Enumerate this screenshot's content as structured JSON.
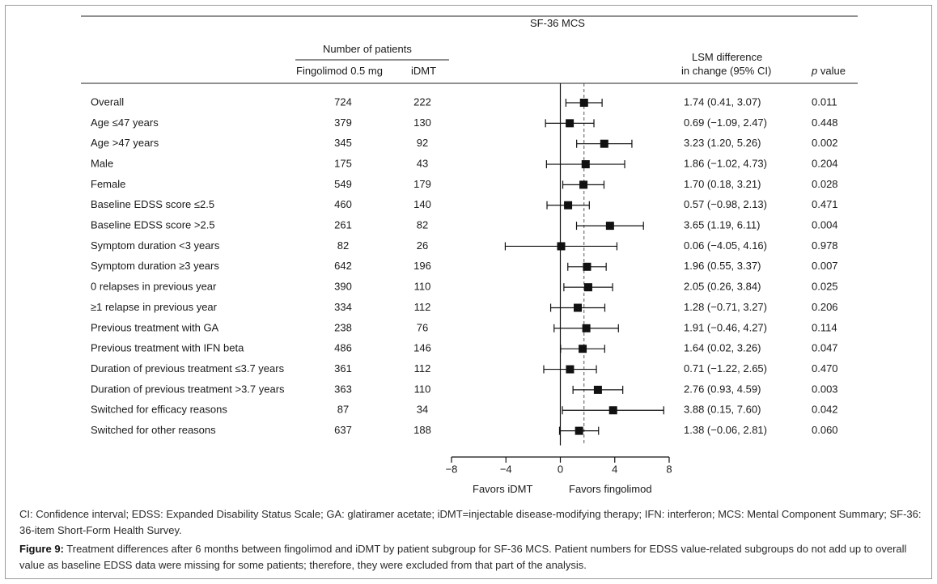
{
  "header": {
    "measure": "SF-36 MCS",
    "patients_group": "Number of patients",
    "col_fingolimod": "Fingolimod 0.5 mg",
    "col_idmt": "iDMT",
    "col_lsm_line1": "LSM difference",
    "col_lsm_line2": "in change (95% CI)",
    "col_p_italic": "p",
    "col_p_rest": " value"
  },
  "chart_data": {
    "type": "forest",
    "xlim": [
      -8,
      8
    ],
    "xticks": [
      "−8",
      "−4",
      "0",
      "4",
      "8"
    ],
    "xtick_values": [
      -8,
      -4,
      0,
      4,
      8
    ],
    "reference_line": 0,
    "overall_dashed_line": 1.74,
    "favors_left": "Favors iDMT",
    "favors_right": "Favors fingolimod",
    "rows": [
      {
        "label": "Overall",
        "n_fingo": "724",
        "n_idmt": "222",
        "est": 1.74,
        "lo": 0.41,
        "hi": 3.07,
        "ci_text": "1.74 (0.41, 3.07)",
        "p": "0.011"
      },
      {
        "label": "Age ≤47 years",
        "n_fingo": "379",
        "n_idmt": "130",
        "est": 0.69,
        "lo": -1.09,
        "hi": 2.47,
        "ci_text": "0.69 (−1.09, 2.47)",
        "p": "0.448"
      },
      {
        "label": "Age >47 years",
        "n_fingo": "345",
        "n_idmt": "92",
        "est": 3.23,
        "lo": 1.2,
        "hi": 5.26,
        "ci_text": "3.23 (1.20, 5.26)",
        "p": "0.002"
      },
      {
        "label": "Male",
        "n_fingo": "175",
        "n_idmt": "43",
        "est": 1.86,
        "lo": -1.02,
        "hi": 4.73,
        "ci_text": "1.86 (−1.02, 4.73)",
        "p": "0.204"
      },
      {
        "label": "Female",
        "n_fingo": "549",
        "n_idmt": "179",
        "est": 1.7,
        "lo": 0.18,
        "hi": 3.21,
        "ci_text": "1.70 (0.18, 3.21)",
        "p": "0.028"
      },
      {
        "label": "Baseline EDSS score ≤2.5",
        "n_fingo": "460",
        "n_idmt": "140",
        "est": 0.57,
        "lo": -0.98,
        "hi": 2.13,
        "ci_text": "0.57 (−0.98, 2.13)",
        "p": "0.471"
      },
      {
        "label": "Baseline EDSS score >2.5",
        "n_fingo": "261",
        "n_idmt": "82",
        "est": 3.65,
        "lo": 1.19,
        "hi": 6.11,
        "ci_text": "3.65 (1.19, 6.11)",
        "p": "0.004"
      },
      {
        "label": "Symptom duration <3 years",
        "n_fingo": "82",
        "n_idmt": "26",
        "est": 0.06,
        "lo": -4.05,
        "hi": 4.16,
        "ci_text": "0.06 (−4.05, 4.16)",
        "p": "0.978"
      },
      {
        "label": "Symptom duration ≥3 years",
        "n_fingo": "642",
        "n_idmt": "196",
        "est": 1.96,
        "lo": 0.55,
        "hi": 3.37,
        "ci_text": "1.96 (0.55, 3.37)",
        "p": "0.007"
      },
      {
        "label": "0 relapses in previous year",
        "n_fingo": "390",
        "n_idmt": "110",
        "est": 2.05,
        "lo": 0.26,
        "hi": 3.84,
        "ci_text": "2.05 (0.26, 3.84)",
        "p": "0.025"
      },
      {
        "label": "≥1 relapse in previous year",
        "n_fingo": "334",
        "n_idmt": "112",
        "est": 1.28,
        "lo": -0.71,
        "hi": 3.27,
        "ci_text": "1.28 (−0.71, 3.27)",
        "p": "0.206"
      },
      {
        "label": "Previous treatment with GA",
        "n_fingo": "238",
        "n_idmt": "76",
        "est": 1.91,
        "lo": -0.46,
        "hi": 4.27,
        "ci_text": "1.91 (−0.46, 4.27)",
        "p": "0.114"
      },
      {
        "label": "Previous treatment with IFN beta",
        "n_fingo": "486",
        "n_idmt": "146",
        "est": 1.64,
        "lo": 0.02,
        "hi": 3.26,
        "ci_text": "1.64 (0.02, 3.26)",
        "p": "0.047"
      },
      {
        "label": "Duration of previous treatment ≤3.7 years",
        "n_fingo": "361",
        "n_idmt": "112",
        "est": 0.71,
        "lo": -1.22,
        "hi": 2.65,
        "ci_text": "0.71 (−1.22, 2.65)",
        "p": "0.470"
      },
      {
        "label": "Duration of previous treatment >3.7 years",
        "n_fingo": "363",
        "n_idmt": "110",
        "est": 2.76,
        "lo": 0.93,
        "hi": 4.59,
        "ci_text": "2.76 (0.93, 4.59)",
        "p": "0.003"
      },
      {
        "label": "Switched for efficacy reasons",
        "n_fingo": "87",
        "n_idmt": "34",
        "est": 3.88,
        "lo": 0.15,
        "hi": 7.6,
        "ci_text": "3.88 (0.15, 7.60)",
        "p": "0.042"
      },
      {
        "label": "Switched for other reasons",
        "n_fingo": "637",
        "n_idmt": "188",
        "est": 1.38,
        "lo": -0.06,
        "hi": 2.81,
        "ci_text": "1.38 (−0.06, 2.81)",
        "p": "0.060"
      }
    ]
  },
  "abbreviations": "CI: Confidence interval; EDSS: Expanded Disability Status Scale; GA: glatiramer acetate; iDMT=injectable disease-modifying therapy; IFN: interferon; MCS: Mental Component Summary; SF-36: 36-item Short-Form Health Survey.",
  "figure_caption": {
    "label": "Figure 9:",
    "text": " Treatment differences after 6 months between fingolimod and iDMT by patient subgroup for SF-36 MCS. Patient numbers for EDSS value-related subgroups do not add up to overall value as baseline EDSS data were missing for some patients; therefore, they were excluded from that part of the analysis."
  }
}
